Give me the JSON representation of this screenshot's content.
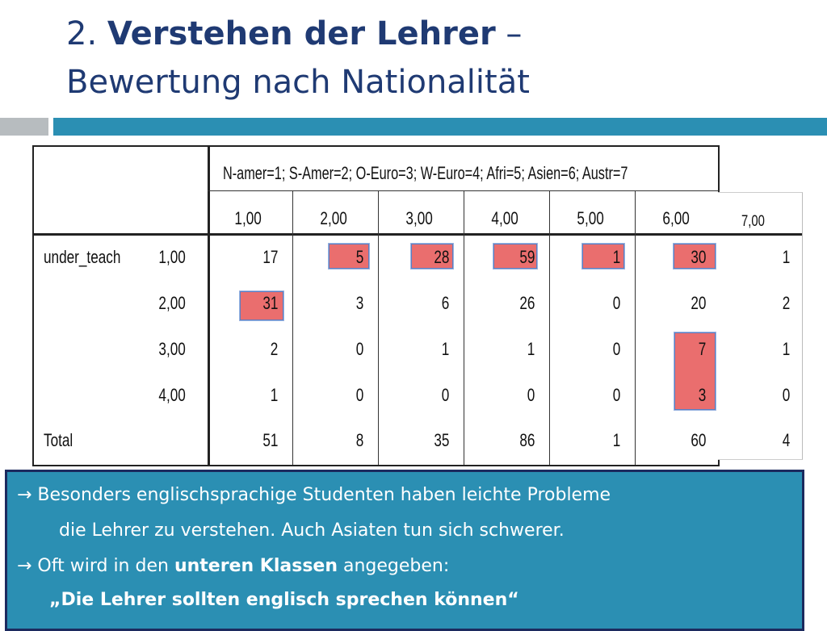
{
  "title": {
    "number": "2.",
    "bold": "Verstehen der Lehrer",
    "dash": "–",
    "subtitle": "Bewertung nach Nationalität"
  },
  "table": {
    "legend": "N-amer=1; S-Amer=2; O-Euro=3; W-Euro=4; Afri=5; Asien=6; Austr=7",
    "columns": [
      "1,00",
      "2,00",
      "3,00",
      "4,00",
      "5,00",
      "6,00",
      "7,00"
    ],
    "row_var": "under_teach",
    "rows": [
      {
        "label": "1,00",
        "values": [
          "17",
          "5",
          "28",
          "59",
          "1",
          "30",
          "1"
        ]
      },
      {
        "label": "2,00",
        "values": [
          "31",
          "3",
          "6",
          "26",
          "0",
          "20",
          "2"
        ]
      },
      {
        "label": "3,00",
        "values": [
          "2",
          "0",
          "1",
          "1",
          "0",
          "7",
          "1"
        ]
      },
      {
        "label": "4,00",
        "values": [
          "1",
          "0",
          "0",
          "0",
          "0",
          "3",
          "0"
        ]
      }
    ],
    "total_label": "Total",
    "totals": [
      "51",
      "8",
      "35",
      "86",
      "1",
      "60",
      "4"
    ],
    "highlight_color": "#ea6e6e"
  },
  "callout": {
    "line1": "→ Besonders englischsprachige Studenten haben leichte Probleme",
    "line2": "die Lehrer zu verstehen. Auch Asiaten tun sich schwerer.",
    "line3_pre": "→ Oft wird in den ",
    "line3_bold": "unteren Klassen",
    "line3_post": " angegeben:",
    "line4": "„Die Lehrer sollten englisch sprechen können“"
  },
  "colors": {
    "title": "#1f3a73",
    "accent_bar": "#2b8fb3",
    "gray_bar": "#b7bcbf",
    "callout_bg": "#2b8fb3",
    "callout_border": "#1c2a5e"
  }
}
